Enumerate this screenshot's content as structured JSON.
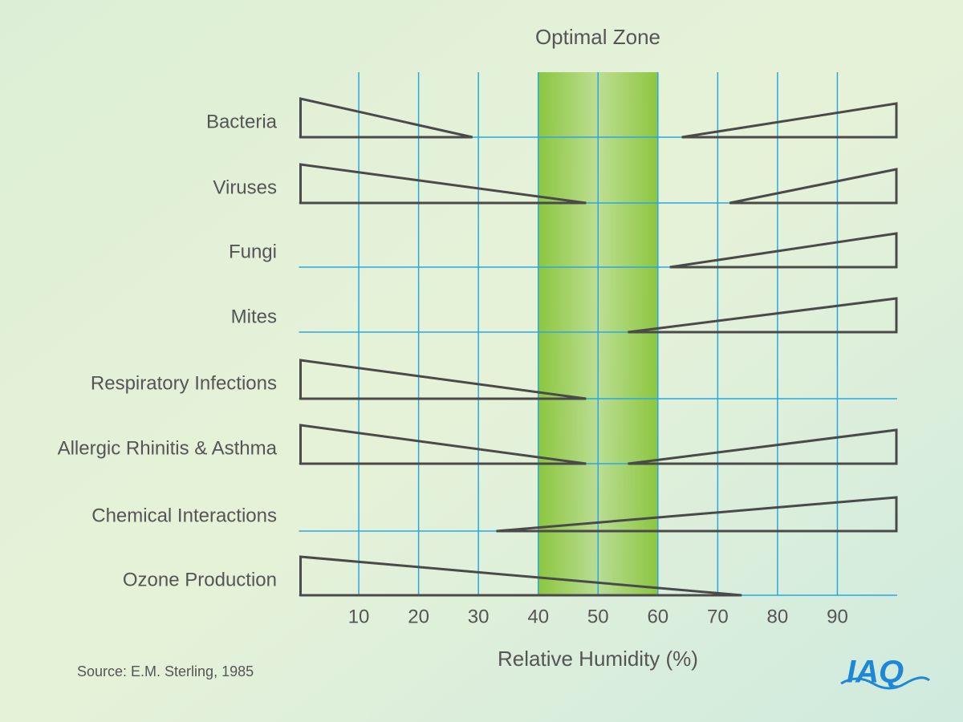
{
  "chart_data": {
    "type": "wedge",
    "title": "Optimal Zone",
    "optimal_range": [
      40,
      60
    ],
    "categories": [
      "Bacteria",
      "Viruses",
      "Fungi",
      "Mites",
      "Respiratory Infections",
      "Allergic Rhinitis & Asthma",
      "Chemical Interactions",
      "Ozone Production"
    ],
    "left_end": [
      29,
      48,
      null,
      null,
      48,
      48,
      null,
      74
    ],
    "right_start": [
      64,
      72,
      62,
      55,
      null,
      55,
      33,
      null
    ],
    "xlim": [
      0,
      100
    ],
    "xticks": [
      10,
      20,
      30,
      40,
      50,
      60,
      70,
      80,
      90
    ],
    "xlabel": "Relative Humidity (%)",
    "grid": true,
    "color": "#4a4a4a",
    "zone_color": "#8cc63f",
    "grid_color": "#29a8e0",
    "source": "Source: E.M. Sterling, 1985",
    "logo": "IAQ"
  }
}
